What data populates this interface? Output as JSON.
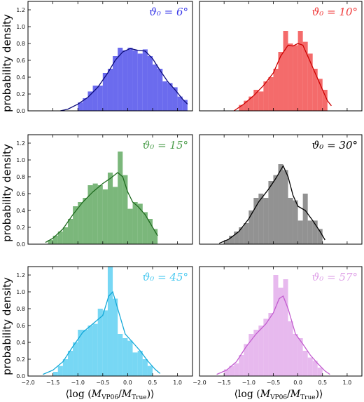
{
  "ylabel": "probability density",
  "xlabel": "⟨log (M_VP06/M_True)⟩",
  "xlabel_parts": {
    "pre": "⟨log (",
    "m1": "M",
    "s1": "VP06",
    "slash": "/",
    "m2": "M",
    "s2": "True",
    "post": ")⟩"
  },
  "chart_data": [
    {
      "type": "histogram+kde",
      "panel": "top-left",
      "label": "ϑ₀ = 6°",
      "color": "#3a3ae8",
      "kde_color": "#0b0b7a",
      "xlim": [
        -2.0,
        1.3
      ],
      "ylim": [
        0,
        1.3
      ],
      "bin_width": 0.1,
      "bins": [
        [
          -0.95,
          0.1
        ],
        [
          -0.85,
          0.15
        ],
        [
          -0.75,
          0.23
        ],
        [
          -0.65,
          0.3
        ],
        [
          -0.55,
          0.3
        ],
        [
          -0.45,
          0.45
        ],
        [
          -0.35,
          0.5
        ],
        [
          -0.25,
          0.65
        ],
        [
          -0.15,
          0.75
        ],
        [
          -0.05,
          0.72
        ],
        [
          0.05,
          0.75
        ],
        [
          0.15,
          0.72
        ],
        [
          0.25,
          0.68
        ],
        [
          0.35,
          0.73
        ],
        [
          0.45,
          0.65
        ],
        [
          0.55,
          0.55
        ],
        [
          0.65,
          0.5
        ],
        [
          0.75,
          0.35
        ],
        [
          0.85,
          0.33
        ],
        [
          0.95,
          0.28
        ],
        [
          1.05,
          0.17
        ],
        [
          1.15,
          0.13
        ]
      ],
      "kde": [
        [
          -1.35,
          0.0
        ],
        [
          -1.2,
          0.02
        ],
        [
          -1.0,
          0.08
        ],
        [
          -0.8,
          0.16
        ],
        [
          -0.6,
          0.28
        ],
        [
          -0.4,
          0.45
        ],
        [
          -0.25,
          0.6
        ],
        [
          -0.1,
          0.7
        ],
        [
          0.05,
          0.74
        ],
        [
          0.2,
          0.72
        ],
        [
          0.35,
          0.71
        ],
        [
          0.5,
          0.62
        ],
        [
          0.65,
          0.48
        ],
        [
          0.8,
          0.35
        ],
        [
          0.95,
          0.25
        ],
        [
          1.1,
          0.14
        ],
        [
          1.2,
          0.08
        ]
      ],
      "yticks": [
        0.0,
        0.2,
        0.4,
        0.6,
        0.8,
        1.0,
        1.2
      ]
    },
    {
      "type": "histogram+kde",
      "panel": "top-right",
      "label": "ϑ₀ = 10°",
      "color": "#f03a3a",
      "kde_color": "#cc0000",
      "xlim": [
        -2.0,
        1.3
      ],
      "ylim": [
        0,
        1.3
      ],
      "bin_width": 0.1,
      "bins": [
        [
          -1.15,
          0.07
        ],
        [
          -1.05,
          0.12
        ],
        [
          -0.95,
          0.17
        ],
        [
          -0.85,
          0.25
        ],
        [
          -0.75,
          0.23
        ],
        [
          -0.65,
          0.35
        ],
        [
          -0.55,
          0.4
        ],
        [
          -0.45,
          0.5
        ],
        [
          -0.35,
          0.7
        ],
        [
          -0.25,
          0.95
        ],
        [
          -0.15,
          0.8
        ],
        [
          -0.05,
          0.78
        ],
        [
          0.05,
          0.95
        ],
        [
          0.15,
          0.82
        ],
        [
          0.25,
          0.68
        ],
        [
          0.35,
          0.5
        ],
        [
          0.45,
          0.38
        ],
        [
          0.55,
          0.25
        ]
      ],
      "kde": [
        [
          -1.3,
          0.0
        ],
        [
          -1.1,
          0.08
        ],
        [
          -0.9,
          0.18
        ],
        [
          -0.7,
          0.3
        ],
        [
          -0.5,
          0.45
        ],
        [
          -0.35,
          0.65
        ],
        [
          -0.2,
          0.78
        ],
        [
          -0.1,
          0.77
        ],
        [
          0.0,
          0.8
        ],
        [
          0.1,
          0.78
        ],
        [
          0.2,
          0.65
        ],
        [
          0.35,
          0.45
        ],
        [
          0.5,
          0.25
        ],
        [
          0.6,
          0.12
        ],
        [
          0.68,
          0.06
        ]
      ],
      "yticks": []
    },
    {
      "type": "histogram+kde",
      "panel": "mid-left",
      "label": "ϑ₀ = 15°",
      "color": "#4f9f4f",
      "kde_color": "#1f6a1f",
      "xlim": [
        -2.0,
        1.3
      ],
      "ylim": [
        0,
        1.3
      ],
      "bin_width": 0.1,
      "bins": [
        [
          -1.55,
          0.05
        ],
        [
          -1.45,
          0.1
        ],
        [
          -1.35,
          0.15
        ],
        [
          -1.25,
          0.2
        ],
        [
          -1.15,
          0.3
        ],
        [
          -1.05,
          0.45
        ],
        [
          -0.95,
          0.5
        ],
        [
          -0.85,
          0.55
        ],
        [
          -0.75,
          0.7
        ],
        [
          -0.65,
          0.72
        ],
        [
          -0.55,
          0.7
        ],
        [
          -0.45,
          0.65
        ],
        [
          -0.35,
          0.85
        ],
        [
          -0.25,
          0.68
        ],
        [
          -0.15,
          1.1
        ],
        [
          -0.05,
          0.82
        ],
        [
          0.05,
          0.42
        ],
        [
          0.15,
          0.5
        ],
        [
          0.25,
          0.48
        ],
        [
          0.35,
          0.38
        ],
        [
          0.45,
          0.3
        ],
        [
          0.55,
          0.18
        ]
      ],
      "kde": [
        [
          -1.65,
          0.02
        ],
        [
          -1.5,
          0.07
        ],
        [
          -1.3,
          0.18
        ],
        [
          -1.1,
          0.35
        ],
        [
          -0.9,
          0.5
        ],
        [
          -0.7,
          0.62
        ],
        [
          -0.5,
          0.72
        ],
        [
          -0.35,
          0.78
        ],
        [
          -0.2,
          0.85
        ],
        [
          -0.1,
          0.8
        ],
        [
          0.0,
          0.62
        ],
        [
          0.1,
          0.5
        ],
        [
          0.2,
          0.45
        ],
        [
          0.35,
          0.35
        ],
        [
          0.5,
          0.2
        ],
        [
          0.6,
          0.1
        ]
      ],
      "yticks": [
        0.0,
        0.2,
        0.4,
        0.6,
        0.8,
        1.0,
        1.2
      ]
    },
    {
      "type": "histogram+kde",
      "panel": "mid-right",
      "label": "ϑ₀ = 30°",
      "color": "#6e6e6e",
      "kde_color": "#000000",
      "xlim": [
        -2.0,
        1.3
      ],
      "ylim": [
        0,
        1.3
      ],
      "bin_width": 0.1,
      "bins": [
        [
          -1.45,
          0.05
        ],
        [
          -1.35,
          0.1
        ],
        [
          -1.25,
          0.15
        ],
        [
          -1.15,
          0.2
        ],
        [
          -1.05,
          0.25
        ],
        [
          -0.95,
          0.4
        ],
        [
          -0.85,
          0.55
        ],
        [
          -0.75,
          0.6
        ],
        [
          -0.65,
          0.55
        ],
        [
          -0.55,
          0.75
        ],
        [
          -0.45,
          0.82
        ],
        [
          -0.35,
          0.95
        ],
        [
          -0.25,
          0.88
        ],
        [
          -0.15,
          0.55
        ],
        [
          -0.05,
          0.52
        ],
        [
          0.05,
          0.28
        ],
        [
          0.15,
          0.6
        ],
        [
          0.25,
          0.28
        ],
        [
          0.35,
          0.28
        ],
        [
          0.45,
          0.18
        ]
      ],
      "kde": [
        [
          -1.6,
          0.01
        ],
        [
          -1.4,
          0.06
        ],
        [
          -1.2,
          0.15
        ],
        [
          -1.0,
          0.3
        ],
        [
          -0.8,
          0.5
        ],
        [
          -0.6,
          0.65
        ],
        [
          -0.45,
          0.78
        ],
        [
          -0.3,
          0.93
        ],
        [
          -0.2,
          0.8
        ],
        [
          -0.1,
          0.58
        ],
        [
          0.0,
          0.45
        ],
        [
          0.15,
          0.4
        ],
        [
          0.3,
          0.28
        ],
        [
          0.45,
          0.15
        ],
        [
          0.55,
          0.05
        ]
      ],
      "yticks": []
    },
    {
      "type": "histogram+kde",
      "panel": "bottom-left",
      "label": "ϑ₀ = 45°",
      "color": "#4ac9f0",
      "kde_color": "#12a8d8",
      "xlim": [
        -2.0,
        1.3
      ],
      "ylim": [
        0,
        1.3
      ],
      "bin_width": 0.1,
      "bins": [
        [
          -1.45,
          0.05
        ],
        [
          -1.35,
          0.12
        ],
        [
          -1.25,
          0.2
        ],
        [
          -1.15,
          0.3
        ],
        [
          -1.05,
          0.4
        ],
        [
          -0.95,
          0.55
        ],
        [
          -0.85,
          0.55
        ],
        [
          -0.75,
          0.6
        ],
        [
          -0.65,
          0.62
        ],
        [
          -0.55,
          0.8
        ],
        [
          -0.45,
          0.78
        ],
        [
          -0.35,
          1.3
        ],
        [
          -0.25,
          0.92
        ],
        [
          -0.15,
          0.5
        ],
        [
          -0.05,
          0.45
        ],
        [
          0.05,
          0.42
        ],
        [
          0.15,
          0.28
        ],
        [
          0.25,
          0.3
        ],
        [
          0.35,
          0.2
        ],
        [
          0.45,
          0.12
        ]
      ],
      "kde": [
        [
          -1.7,
          0.02
        ],
        [
          -1.5,
          0.07
        ],
        [
          -1.3,
          0.17
        ],
        [
          -1.1,
          0.35
        ],
        [
          -0.9,
          0.52
        ],
        [
          -0.7,
          0.62
        ],
        [
          -0.5,
          0.72
        ],
        [
          -0.38,
          0.95
        ],
        [
          -0.3,
          1.0
        ],
        [
          -0.2,
          0.8
        ],
        [
          -0.05,
          0.5
        ],
        [
          0.1,
          0.4
        ],
        [
          0.25,
          0.3
        ],
        [
          0.4,
          0.18
        ],
        [
          0.55,
          0.08
        ],
        [
          0.65,
          0.03
        ]
      ],
      "yticks": [
        0.0,
        0.2,
        0.4,
        0.6,
        0.8,
        1.0,
        1.2
      ]
    },
    {
      "type": "histogram+kde",
      "panel": "bottom-right",
      "label": "ϑ₀ = 57°",
      "color": "#dfa2e8",
      "kde_color": "#c25ccf",
      "xlim": [
        -2.0,
        1.3
      ],
      "ylim": [
        0,
        1.3
      ],
      "bin_width": 0.1,
      "bins": [
        [
          -1.45,
          0.08
        ],
        [
          -1.35,
          0.12
        ],
        [
          -1.25,
          0.15
        ],
        [
          -1.15,
          0.25
        ],
        [
          -1.05,
          0.38
        ],
        [
          -0.95,
          0.5
        ],
        [
          -0.85,
          0.55
        ],
        [
          -0.75,
          0.6
        ],
        [
          -0.65,
          0.68
        ],
        [
          -0.55,
          0.75
        ],
        [
          -0.45,
          1.2
        ],
        [
          -0.35,
          1.05
        ],
        [
          -0.25,
          1.15
        ],
        [
          -0.15,
          0.65
        ],
        [
          -0.05,
          0.5
        ],
        [
          0.05,
          0.45
        ],
        [
          0.15,
          0.3
        ],
        [
          0.25,
          0.22
        ],
        [
          0.35,
          0.18
        ],
        [
          0.45,
          0.1
        ]
      ],
      "kde": [
        [
          -1.65,
          0.02
        ],
        [
          -1.45,
          0.07
        ],
        [
          -1.25,
          0.17
        ],
        [
          -1.05,
          0.35
        ],
        [
          -0.85,
          0.5
        ],
        [
          -0.65,
          0.62
        ],
        [
          -0.5,
          0.75
        ],
        [
          -0.38,
          0.92
        ],
        [
          -0.3,
          0.95
        ],
        [
          -0.2,
          0.8
        ],
        [
          -0.05,
          0.5
        ],
        [
          0.1,
          0.38
        ],
        [
          0.25,
          0.25
        ],
        [
          0.4,
          0.15
        ],
        [
          0.55,
          0.06
        ],
        [
          0.65,
          0.02
        ]
      ],
      "yticks": []
    }
  ],
  "xticks": [
    -2.0,
    -1.5,
    -1.0,
    -0.5,
    0.0,
    0.5,
    1.0
  ],
  "xtick_labels": [
    "−2.0",
    "−1.5",
    "−1.0",
    "−0.5",
    "0.0",
    "0.5",
    "1.0"
  ]
}
